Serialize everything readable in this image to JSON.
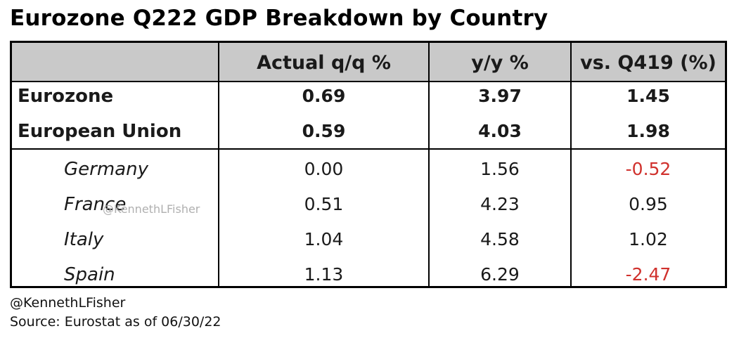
{
  "title": "Eurozone Q222 GDP Breakdown by Country",
  "watermark": "@KennethLFisher",
  "footer": {
    "handle": "@KennethLFisher",
    "source": "Source: Eurostat as of 06/30/22"
  },
  "colors": {
    "header_bg": "#c9c9c9",
    "negative": "#d0312d",
    "text": "#1a1a1a"
  },
  "chart_data": {
    "type": "table",
    "title": "Eurozone Q222 GDP Breakdown by Country",
    "columns": [
      "",
      "Actual q/q %",
      "y/y %",
      "vs. Q419 (%)"
    ],
    "rows": [
      {
        "name": "Eurozone",
        "qq": "0.69",
        "yy": "3.97",
        "vs": "1.45",
        "group": "aggregate"
      },
      {
        "name": "European Union",
        "qq": "0.59",
        "yy": "4.03",
        "vs": "1.98",
        "group": "aggregate"
      },
      {
        "name": "Germany",
        "qq": "0.00",
        "yy": "1.56",
        "vs": "-0.52",
        "group": "country"
      },
      {
        "name": "France",
        "qq": "0.51",
        "yy": "4.23",
        "vs": "0.95",
        "group": "country"
      },
      {
        "name": "Italy",
        "qq": "1.04",
        "yy": "4.58",
        "vs": "1.02",
        "group": "country"
      },
      {
        "name": "Spain",
        "qq": "1.13",
        "yy": "6.29",
        "vs": "-2.47",
        "group": "country"
      }
    ]
  }
}
